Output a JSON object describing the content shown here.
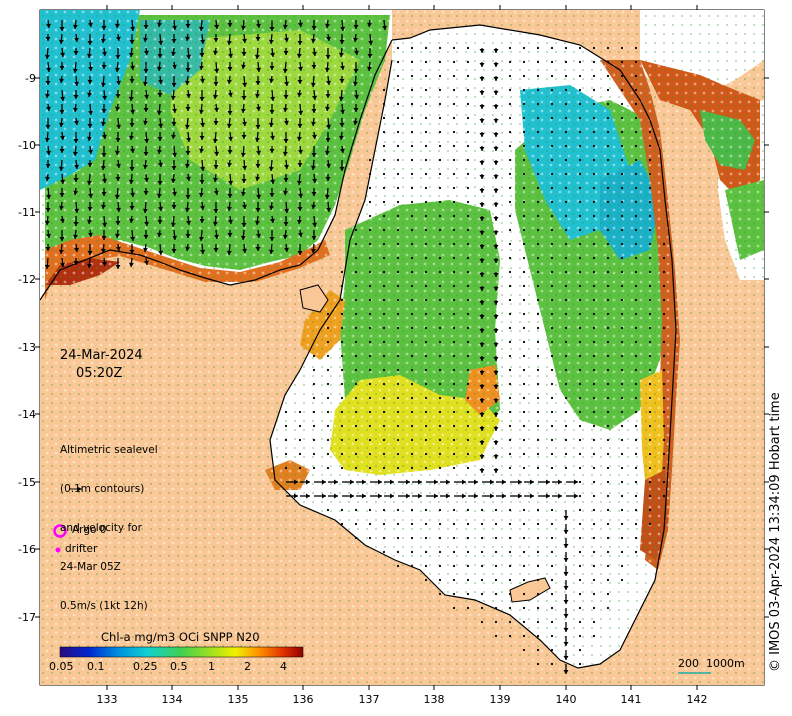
{
  "date": "24-Mar-2024",
  "time": "05:20Z",
  "legend": {
    "lines": [
      "Altimetric sealevel",
      "(0.1m contours)",
      "and velocity for",
      "24-Mar 05Z",
      "0.5m/s (1kt 12h)"
    ],
    "argo_label": "Argo 0",
    "drifter_label": "drifter"
  },
  "colorbar": {
    "title": "Chl-a mg/m3 OCi SNPP N20",
    "ticks": [
      "0.05",
      "0.1",
      "0.25",
      "0.5",
      "1",
      "2",
      "4"
    ]
  },
  "scale_label": "200  1000m",
  "credit": "© IMOS 03-Apr-2024 13:34:09 Hobart time",
  "axes": {
    "x_ticks": [
      "133",
      "134",
      "135",
      "136",
      "137",
      "138",
      "139",
      "140",
      "141",
      "142"
    ],
    "y_ticks": [
      "-9",
      "-10",
      "-11",
      "-12",
      "-13",
      "-14",
      "-15",
      "-16",
      "-17"
    ]
  },
  "colors": {
    "land": "#f9c896",
    "coast_bloom": "#c85a10",
    "chl_green": "#5cc040",
    "chl_cyan": "#20c0d0",
    "argo": "#ff00ff"
  }
}
